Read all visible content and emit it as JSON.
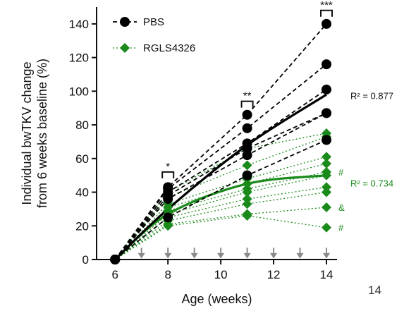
{
  "chart_data": {
    "type": "scatter",
    "xlabel": "Age (weeks)",
    "ylabel_lines": [
      "Individual bwTKV change",
      "from 6 weeks baseline (%)"
    ],
    "xlim": [
      5.3,
      14.4
    ],
    "ylim": [
      0,
      150
    ],
    "x_ticks": [
      6,
      8,
      10,
      12,
      14
    ],
    "y_ticks": [
      0,
      20,
      40,
      60,
      80,
      100,
      120,
      140
    ],
    "dosing_arrow_weeks": [
      7,
      8,
      9,
      10,
      11,
      12,
      13,
      14
    ],
    "series": [
      {
        "name": "PBS",
        "color": "#000000",
        "marker": "circle",
        "line_style": "dashed",
        "trajectories": [
          [
            [
              6,
              0
            ],
            [
              8,
              43
            ],
            [
              11,
              86
            ],
            [
              14,
              140
            ]
          ],
          [
            [
              6,
              0
            ],
            [
              8,
              42
            ],
            [
              11,
              78
            ],
            [
              14,
              116
            ]
          ],
          [
            [
              6,
              0
            ],
            [
              8,
              40
            ],
            [
              11,
              69
            ],
            [
              14,
              101
            ]
          ],
          [
            [
              6,
              0
            ],
            [
              8,
              38
            ],
            [
              11,
              66
            ],
            [
              14,
              87
            ]
          ],
          [
            [
              6,
              0
            ],
            [
              8,
              36
            ],
            [
              11,
              62
            ],
            [
              14,
              87
            ]
          ],
          [
            [
              6,
              0
            ],
            [
              8,
              25
            ],
            [
              11,
              50
            ],
            [
              14,
              71
            ]
          ]
        ],
        "fit": [
          [
            6,
            0
          ],
          [
            8,
            30
          ],
          [
            11,
            68
          ],
          [
            14,
            98
          ]
        ],
        "r2_label": "R² = 0.877"
      },
      {
        "name": "RGLS4326",
        "color": "#1a8a1a",
        "marker": "diamond",
        "line_style": "dotted",
        "trajectories": [
          [
            [
              6,
              0
            ],
            [
              8,
              40
            ],
            [
              11,
              66
            ],
            [
              14,
              75
            ]
          ],
          [
            [
              6,
              0
            ],
            [
              8,
              37
            ],
            [
              11,
              56
            ],
            [
              14,
              73
            ]
          ],
          [
            [
              6,
              0
            ],
            [
              8,
              33
            ],
            [
              11,
              48
            ],
            [
              14,
              61
            ]
          ],
          [
            [
              6,
              0
            ],
            [
              8,
              31
            ],
            [
              11,
              45
            ],
            [
              14,
              57
            ]
          ],
          [
            [
              6,
              0
            ],
            [
              8,
              29
            ],
            [
              11,
              42
            ],
            [
              14,
              52
            ]
          ],
          [
            [
              6,
              0
            ],
            [
              8,
              27
            ],
            [
              11,
              40
            ],
            [
              14,
              50
            ]
          ],
          [
            [
              6,
              0
            ],
            [
              8,
              25
            ],
            [
              11,
              36
            ],
            [
              14,
              43
            ]
          ],
          [
            [
              6,
              0
            ],
            [
              8,
              23
            ],
            [
              11,
              33
            ],
            [
              14,
              40
            ]
          ],
          [
            [
              6,
              0
            ],
            [
              8,
              21
            ],
            [
              11,
              27
            ],
            [
              14,
              31
            ]
          ],
          [
            [
              6,
              0
            ],
            [
              8,
              20
            ],
            [
              11,
              26
            ],
            [
              14,
              19
            ]
          ]
        ],
        "fit": [
          [
            6,
            0
          ],
          [
            8,
            27
          ],
          [
            11,
            45
          ],
          [
            14,
            50
          ]
        ],
        "r2_label": "R² = 0.734"
      }
    ],
    "significance": [
      {
        "x": 8,
        "label": "*",
        "y_bracket": 52
      },
      {
        "x": 11,
        "label": "**",
        "y_bracket": 94
      },
      {
        "x": 14,
        "label": "***",
        "y_bracket": 148
      }
    ],
    "point_annotations": [
      {
        "x": 14,
        "y": 52,
        "label": "#"
      },
      {
        "x": 14,
        "y": 31,
        "label": "&"
      },
      {
        "x": 14,
        "y": 19,
        "label": "#"
      }
    ],
    "page_number": "14"
  }
}
